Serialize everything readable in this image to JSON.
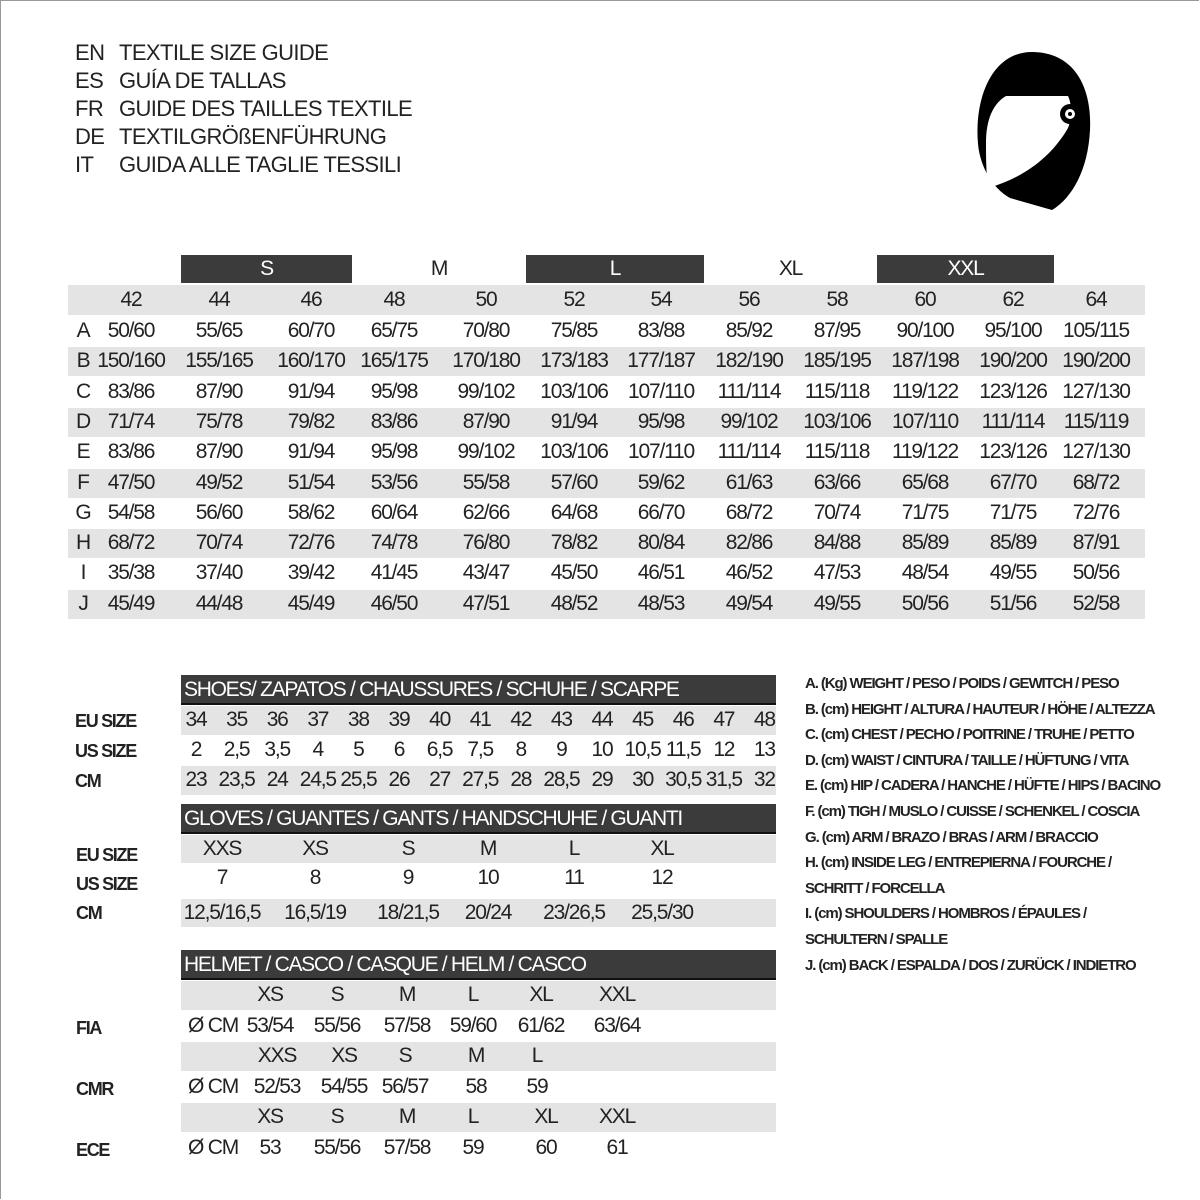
{
  "titles": [
    {
      "lang": "EN",
      "text": "TEXTILE SIZE GUIDE"
    },
    {
      "lang": "ES",
      "text": "GUÍA DE TALLAS"
    },
    {
      "lang": "FR",
      "text": "GUIDE DES TAILLES TEXTILE"
    },
    {
      "lang": "DE",
      "text": "TEXTILGRÖßENFÜHRUNG"
    },
    {
      "lang": "IT",
      "text": "GUIDA ALLE TAGLIE TESSILI"
    }
  ],
  "logo_icon": "helmet-icon",
  "textile": {
    "size_groups": [
      {
        "label": "S",
        "dark": true
      },
      {
        "label": "M",
        "dark": false
      },
      {
        "label": "L",
        "dark": true
      },
      {
        "label": "XL",
        "dark": false
      },
      {
        "label": "XXL",
        "dark": true
      }
    ],
    "sizes": [
      "42",
      "44",
      "46",
      "48",
      "50",
      "52",
      "54",
      "56",
      "58",
      "60",
      "62",
      "64"
    ],
    "rows": [
      {
        "key": "A",
        "values": [
          "50/60",
          "55/65",
          "60/70",
          "65/75",
          "70/80",
          "75/85",
          "83/88",
          "85/92",
          "87/95",
          "90/100",
          "95/100",
          "105/115"
        ]
      },
      {
        "key": "B",
        "values": [
          "150/160",
          "155/165",
          "160/170",
          "165/175",
          "170/180",
          "173/183",
          "177/187",
          "182/190",
          "185/195",
          "187/198",
          "190/200",
          "190/200"
        ]
      },
      {
        "key": "C",
        "values": [
          "83/86",
          "87/90",
          "91/94",
          "95/98",
          "99/102",
          "103/106",
          "107/110",
          "111/114",
          "115/118",
          "119/122",
          "123/126",
          "127/130"
        ]
      },
      {
        "key": "D",
        "values": [
          "71/74",
          "75/78",
          "79/82",
          "83/86",
          "87/90",
          "91/94",
          "95/98",
          "99/102",
          "103/106",
          "107/110",
          "111/114",
          "115/119"
        ]
      },
      {
        "key": "E",
        "values": [
          "83/86",
          "87/90",
          "91/94",
          "95/98",
          "99/102",
          "103/106",
          "107/110",
          "111/114",
          "115/118",
          "119/122",
          "123/126",
          "127/130"
        ]
      },
      {
        "key": "F",
        "values": [
          "47/50",
          "49/52",
          "51/54",
          "53/56",
          "55/58",
          "57/60",
          "59/62",
          "61/63",
          "63/66",
          "65/68",
          "67/70",
          "68/72"
        ]
      },
      {
        "key": "G",
        "values": [
          "54/58",
          "56/60",
          "58/62",
          "60/64",
          "62/66",
          "64/68",
          "66/70",
          "68/72",
          "70/74",
          "71/75",
          "71/75",
          "72/76"
        ]
      },
      {
        "key": "H",
        "values": [
          "68/72",
          "70/74",
          "72/76",
          "74/78",
          "76/80",
          "78/82",
          "80/84",
          "82/86",
          "84/88",
          "85/89",
          "85/89",
          "87/91"
        ]
      },
      {
        "key": "I",
        "values": [
          "35/38",
          "37/40",
          "39/42",
          "41/45",
          "43/47",
          "45/50",
          "46/51",
          "46/52",
          "47/53",
          "48/54",
          "49/55",
          "50/56"
        ]
      },
      {
        "key": "J",
        "values": [
          "45/49",
          "44/48",
          "45/49",
          "46/50",
          "47/51",
          "48/52",
          "48/53",
          "49/54",
          "49/55",
          "50/56",
          "51/56",
          "52/58"
        ]
      }
    ]
  },
  "shoes": {
    "title": "SHOES/ ZAPATOS / CHAUSSURES / SCHUHE / SCARPE",
    "rows": [
      {
        "label": "EU SIZE",
        "values": [
          "34",
          "35",
          "36",
          "37",
          "38",
          "39",
          "40",
          "41",
          "42",
          "43",
          "44",
          "45",
          "46",
          "47",
          "48"
        ]
      },
      {
        "label": "US SIZE",
        "values": [
          "2",
          "2,5",
          "3,5",
          "4",
          "5",
          "6",
          "6,5",
          "7,5",
          "8",
          "9",
          "10",
          "10,5",
          "11,5",
          "12",
          "13"
        ]
      },
      {
        "label": "CM",
        "values": [
          "23",
          "23,5",
          "24",
          "24,5",
          "25,5",
          "26",
          "27",
          "27,5",
          "28",
          "28,5",
          "29",
          "30",
          "30,5",
          "31,5",
          "32"
        ]
      }
    ]
  },
  "gloves": {
    "title": "GLOVES / GUANTES / GANTS / HANDSCHUHE / GUANTI",
    "rows": [
      {
        "label": "EU SIZE",
        "values": [
          "XXS",
          "XS",
          "S",
          "M",
          "L",
          "XL"
        ]
      },
      {
        "label": "US SIZE",
        "values": [
          "7",
          "8",
          "9",
          "10",
          "11",
          "12"
        ]
      },
      {
        "label": "CM",
        "values": [
          "12,5/16,5",
          "16,5/19",
          "18/21,5",
          "20/24",
          "23/26,5",
          "25,5/30"
        ]
      }
    ]
  },
  "helmet": {
    "title": "HELMET / CASCO / CASQUE / HELM / CASCO",
    "unit": "Ø CM",
    "groups": [
      {
        "label": "FIA",
        "sizes": [
          "XS",
          "S",
          "M",
          "L",
          "XL",
          "XXL"
        ],
        "values": [
          "53/54",
          "55/56",
          "57/58",
          "59/60",
          "61/62",
          "63/64"
        ]
      },
      {
        "label": "CMR",
        "sizes": [
          "XXS",
          "XS",
          "S",
          "M",
          "L"
        ],
        "values": [
          "52/53",
          "54/55",
          "56/57",
          "58",
          "59"
        ]
      },
      {
        "label": "ECE",
        "sizes": [
          "XS",
          "S",
          "M",
          "L",
          "XL",
          "XXL"
        ],
        "values": [
          "53",
          "55/56",
          "57/58",
          "59",
          "60",
          "61"
        ]
      }
    ]
  },
  "legend": [
    "A. (Kg) WEIGHT / PESO / POIDS / GEWITCH / PESO",
    "B. (cm) HEIGHT / ALTURA / HAUTEUR / HÖHE / ALTEZZA",
    "C. (cm) CHEST / PECHO / POITRINE / TRUHE / PETTO",
    "D. (cm) WAIST / CINTURA / TAILLE / HÜFTUNG / VITA",
    "E. (cm) HIP / CADERA / HANCHE / HÜFTE / HIPS /  BACINO",
    "F.  (cm) TIGH / MUSLO / CUISSE / SCHENKEL / COSCIA",
    "G. (cm) ARM  / BRAZO / BRAS / ARM / BRACCIO",
    "H. (cm) INSIDE LEG / ENTREPIERNA / FOURCHE /",
    "SCHRITT / FORCELLA",
    "I.  (cm) SHOULDERS / HOMBROS / ÉPAULES /",
    "SCHULTERN / SPALLE",
    "J. (cm) BACK / ESPALDA / DOS / ZURÜCK / INDIETRO"
  ]
}
